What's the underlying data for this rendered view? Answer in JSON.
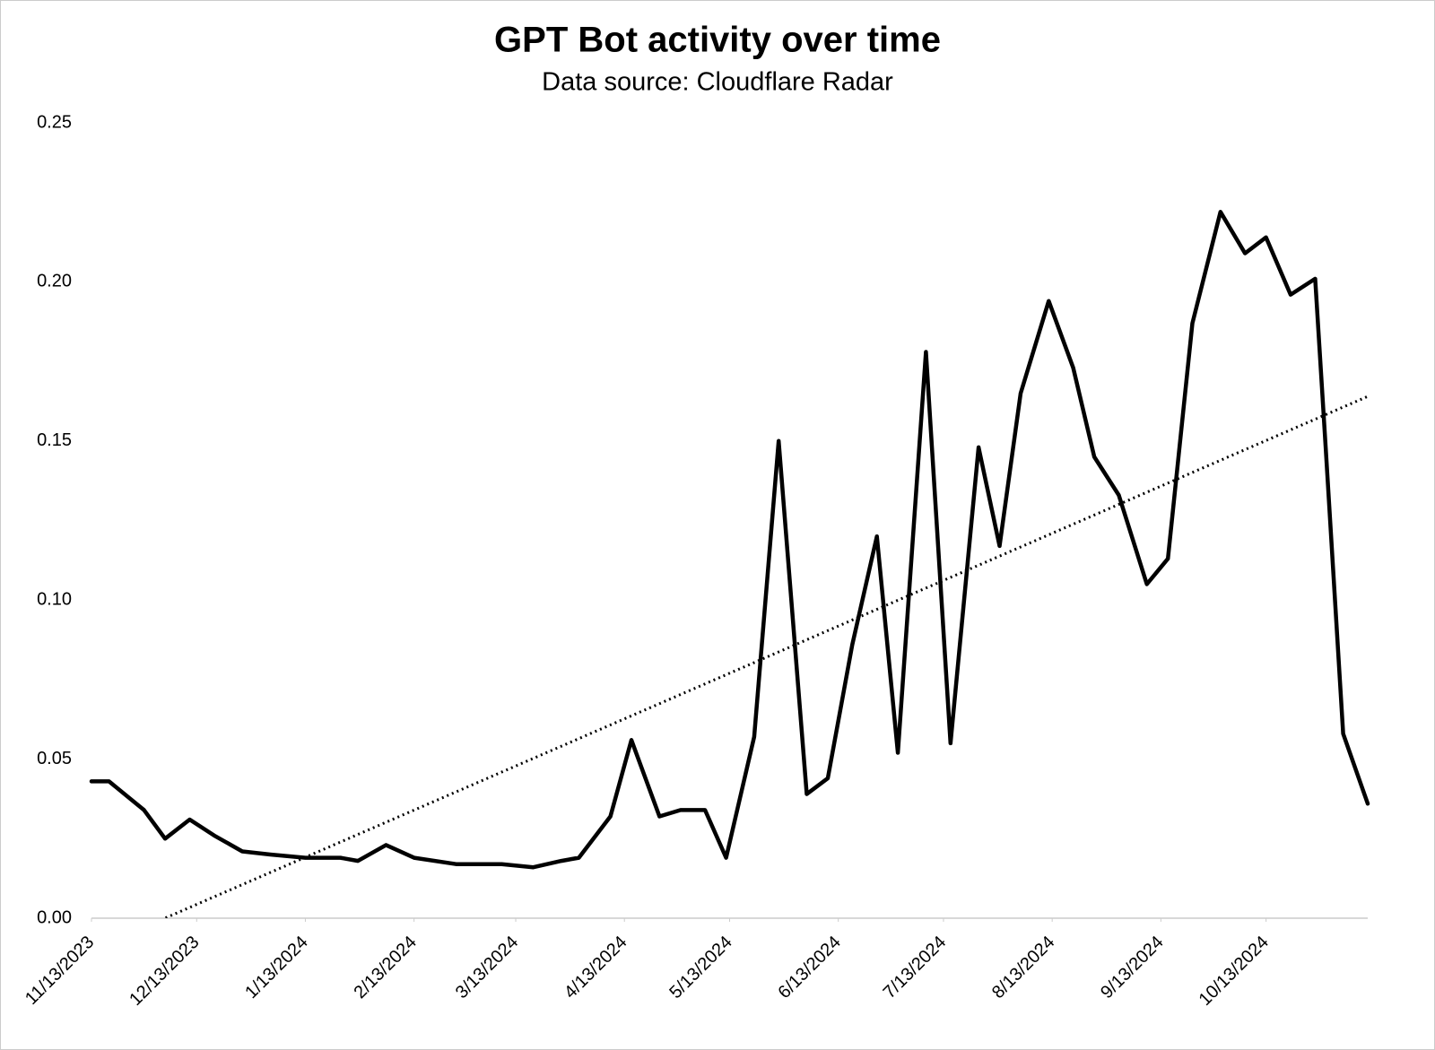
{
  "chart_data": {
    "type": "line",
    "title": "GPT Bot activity over time",
    "subtitle": "Data source: Cloudflare Radar",
    "x": [
      "11/13/2023",
      "11/18/2023",
      "11/28/2023",
      "12/4/2023",
      "12/11/2023",
      "12/18/2023",
      "12/26/2023",
      "1/3/2024",
      "1/13/2024",
      "1/23/2024",
      "1/28/2024",
      "2/5/2024",
      "2/13/2024",
      "2/25/2024",
      "3/9/2024",
      "3/18/2024",
      "3/26/2024",
      "3/31/2024",
      "4/9/2024",
      "4/15/2024",
      "4/23/2024",
      "4/29/2024",
      "5/6/2024",
      "5/12/2024",
      "5/20/2024",
      "5/27/2024",
      "6/4/2024",
      "6/10/2024",
      "6/17/2024",
      "6/24/2024",
      "6/30/2024",
      "7/8/2024",
      "7/15/2024",
      "7/23/2024",
      "7/29/2024",
      "8/4/2024",
      "8/12/2024",
      "8/19/2024",
      "8/25/2024",
      "9/1/2024",
      "9/9/2024",
      "9/15/2024",
      "9/22/2024",
      "9/30/2024",
      "10/7/2024",
      "10/13/2024",
      "10/20/2024",
      "10/27/2024",
      "10/30/2024",
      "11/4/2024",
      "11/11/2024"
    ],
    "series": [
      {
        "color": "#000000",
        "values": [
          0.043,
          0.043,
          0.034,
          0.025,
          0.031,
          0.026,
          0.021,
          0.02,
          0.019,
          0.019,
          0.018,
          0.023,
          0.019,
          0.017,
          0.017,
          0.016,
          0.018,
          0.019,
          0.032,
          0.056,
          0.032,
          0.034,
          0.034,
          0.019,
          0.057,
          0.15,
          0.039,
          0.044,
          0.086,
          0.12,
          0.052,
          0.178,
          0.055,
          0.148,
          0.117,
          0.165,
          0.194,
          0.173,
          0.145,
          0.133,
          0.105,
          0.113,
          0.187,
          0.222,
          0.209,
          0.214,
          0.196,
          0.201,
          0.148,
          0.058,
          0.036
        ]
      }
    ],
    "trendline": {
      "style": "dotted",
      "color": "#000000",
      "x": [
        "11/13/2023",
        "11/11/2024"
      ],
      "values": [
        -0.01,
        0.164
      ]
    },
    "xlim": [
      "11/13/2023",
      "11/11/2024"
    ],
    "xticks": [
      "11/13/2023",
      "12/13/2023",
      "1/13/2024",
      "2/13/2024",
      "3/13/2024",
      "4/13/2024",
      "5/13/2024",
      "6/13/2024",
      "7/13/2024",
      "8/13/2024",
      "9/13/2024",
      "10/13/2024"
    ],
    "ylim": [
      0,
      0.25
    ],
    "yticks": [
      {
        "value": 0,
        "label": "0.00"
      },
      {
        "value": 0.05,
        "label": "0.05"
      },
      {
        "value": 0.1,
        "label": "0.10"
      },
      {
        "value": 0.15,
        "label": "0.15"
      },
      {
        "value": 0.2,
        "label": "0.20"
      },
      {
        "value": 0.25,
        "label": "0.25"
      }
    ],
    "grid": false
  }
}
